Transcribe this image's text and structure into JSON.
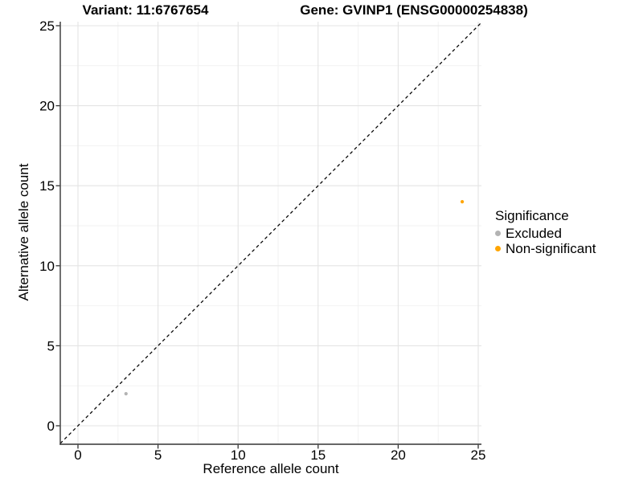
{
  "chart_data": {
    "type": "scatter",
    "title_left": "Variant: 11:6767654",
    "title_right": "Gene: GVINP1 (ENSG00000254838)",
    "xlabel": "Reference allele count",
    "ylabel": "Alternative allele count",
    "xlim": [
      0,
      25
    ],
    "ylim": [
      0,
      25
    ],
    "x_ticks": [
      0,
      5,
      10,
      15,
      20,
      25
    ],
    "y_ticks": [
      0,
      5,
      10,
      15,
      20,
      25
    ],
    "minor_grid_step": 2.5,
    "grid": "on",
    "identity_line": {
      "equation": "y = x",
      "style": "dashed",
      "color": "#000000"
    },
    "legend": {
      "title": "Significance",
      "position": "right"
    },
    "series": [
      {
        "name": "Excluded",
        "color": "#b3b3b3",
        "points": [
          {
            "x": 3,
            "y": 2
          }
        ]
      },
      {
        "name": "Non-significant",
        "color": "#ffa500",
        "points": [
          {
            "x": 24,
            "y": 14
          }
        ]
      }
    ],
    "colors": {
      "axis_line": "#333333",
      "major_grid": "#e4e4e4",
      "minor_grid": "#f2f2f2"
    }
  }
}
